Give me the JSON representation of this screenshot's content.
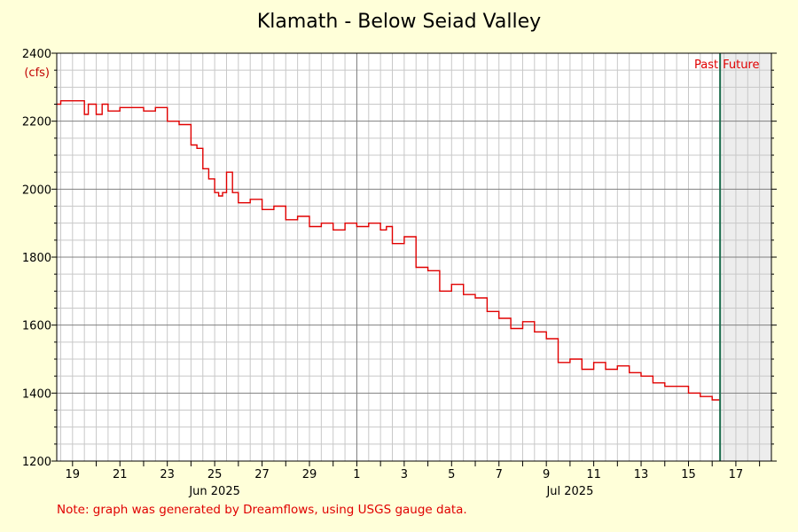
{
  "chart_data": {
    "type": "line",
    "title": "Klamath - Below Seiad Valley",
    "ylabel": "(cfs)",
    "ylim": [
      1200,
      2400
    ],
    "y_ticks": [
      1200,
      1400,
      1600,
      1800,
      2000,
      2200,
      2400
    ],
    "xlim": [
      "2025-06-18T08:00",
      "2025-07-18T12:00"
    ],
    "x_tick_labels": [
      {
        "date": "2025-06-19",
        "label": "19"
      },
      {
        "date": "2025-06-21",
        "label": "21"
      },
      {
        "date": "2025-06-23",
        "label": "23"
      },
      {
        "date": "2025-06-25",
        "label": "25"
      },
      {
        "date": "2025-06-27",
        "label": "27"
      },
      {
        "date": "2025-06-29",
        "label": "29"
      },
      {
        "date": "2025-07-01",
        "label": "1"
      },
      {
        "date": "2025-07-03",
        "label": "3"
      },
      {
        "date": "2025-07-05",
        "label": "5"
      },
      {
        "date": "2025-07-07",
        "label": "7"
      },
      {
        "date": "2025-07-09",
        "label": "9"
      },
      {
        "date": "2025-07-11",
        "label": "11"
      },
      {
        "date": "2025-07-13",
        "label": "13"
      },
      {
        "date": "2025-07-15",
        "label": "15"
      },
      {
        "date": "2025-07-17",
        "label": "17"
      }
    ],
    "month_labels": [
      {
        "date": "2025-06-25",
        "label": "Jun 2025"
      },
      {
        "date": "2025-07-10",
        "label": "Jul 2025"
      }
    ],
    "now": "2025-07-16T08:00",
    "past_label": "Past",
    "future_label": "Future",
    "grid": true,
    "series_color": "#e00000",
    "series": [
      {
        "x": [
          "2025-06-18T08:00",
          "2025-06-18T12:00",
          "2025-06-19T00:00",
          "2025-06-19T08:00",
          "2025-06-19T12:00",
          "2025-06-19T16:00",
          "2025-06-20T00:00",
          "2025-06-20T06:00",
          "2025-06-20T12:00",
          "2025-06-21T00:00",
          "2025-06-21T12:00",
          "2025-06-22T00:00",
          "2025-06-22T12:00",
          "2025-06-23T00:00",
          "2025-06-23T12:00",
          "2025-06-24T00:00",
          "2025-06-24T06:00",
          "2025-06-24T12:00",
          "2025-06-24T18:00",
          "2025-06-25T00:00",
          "2025-06-25T04:00",
          "2025-06-25T08:00",
          "2025-06-25T12:00",
          "2025-06-25T18:00",
          "2025-06-26T00:00",
          "2025-06-26T12:00",
          "2025-06-27T00:00",
          "2025-06-27T12:00",
          "2025-06-28T00:00",
          "2025-06-28T12:00",
          "2025-06-29T00:00",
          "2025-06-29T12:00",
          "2025-06-30T00:00",
          "2025-06-30T12:00",
          "2025-07-01T00:00",
          "2025-07-01T12:00",
          "2025-07-02T00:00",
          "2025-07-02T06:00",
          "2025-07-02T12:00",
          "2025-07-03T00:00",
          "2025-07-03T12:00",
          "2025-07-04T00:00",
          "2025-07-04T12:00",
          "2025-07-05T00:00",
          "2025-07-05T12:00",
          "2025-07-06T00:00",
          "2025-07-06T12:00",
          "2025-07-07T00:00",
          "2025-07-07T12:00",
          "2025-07-08T00:00",
          "2025-07-08T12:00",
          "2025-07-09T00:00",
          "2025-07-09T12:00",
          "2025-07-10T00:00",
          "2025-07-10T12:00",
          "2025-07-11T00:00",
          "2025-07-11T12:00",
          "2025-07-12T00:00",
          "2025-07-12T12:00",
          "2025-07-13T00:00",
          "2025-07-13T12:00",
          "2025-07-14T00:00",
          "2025-07-14T12:00",
          "2025-07-15T00:00",
          "2025-07-15T12:00",
          "2025-07-16T00:00",
          "2025-07-16T08:00"
        ],
        "y": [
          2250,
          2260,
          2260,
          2260,
          2220,
          2250,
          2220,
          2250,
          2230,
          2240,
          2240,
          2230,
          2240,
          2200,
          2190,
          2130,
          2120,
          2060,
          2030,
          1990,
          1980,
          1990,
          2050,
          1990,
          1960,
          1970,
          1940,
          1950,
          1910,
          1920,
          1890,
          1900,
          1880,
          1900,
          1890,
          1900,
          1880,
          1890,
          1840,
          1860,
          1770,
          1760,
          1700,
          1720,
          1690,
          1680,
          1640,
          1620,
          1590,
          1610,
          1580,
          1560,
          1490,
          1500,
          1470,
          1490,
          1470,
          1480,
          1460,
          1450,
          1430,
          1420,
          1420,
          1400,
          1390,
          1380,
          1400
        ]
      }
    ]
  },
  "note": "Note: graph was generated by Dreamflows, using USGS gauge data."
}
